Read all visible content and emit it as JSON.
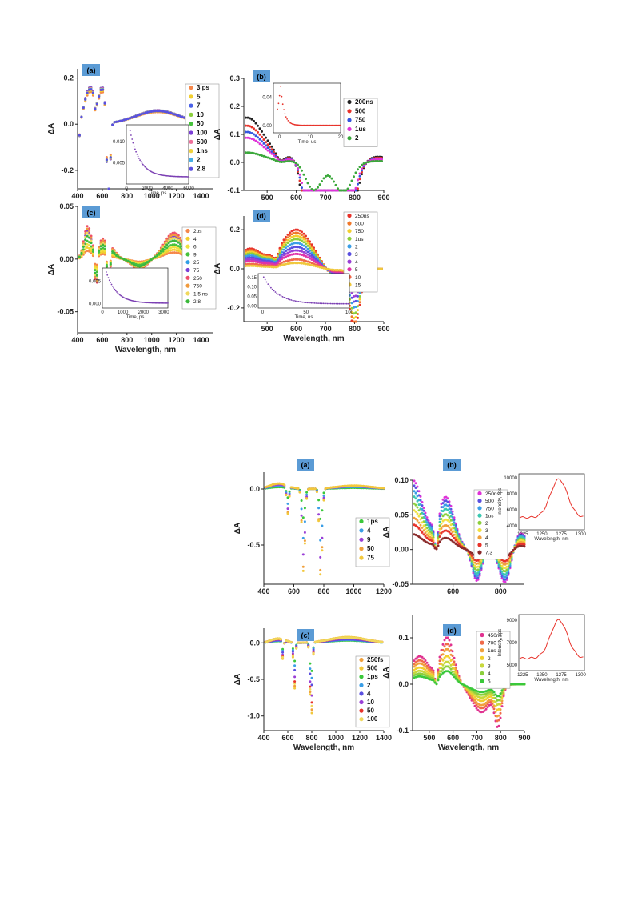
{
  "colors": {
    "panel_label_bg": "#5b9bd5",
    "axis": "#222222",
    "fluorescence": "#e8322a",
    "inset_kinetics": "#7b3fb3"
  },
  "chart_data": [
    {
      "type": "scatter",
      "panel": "(a)",
      "group": "top",
      "ylabel": "ΔA",
      "xlabel": "",
      "xlim": [
        400,
        1500
      ],
      "ylim": [
        -0.28,
        0.24
      ],
      "xticks": [
        400,
        600,
        800,
        1000,
        1200,
        1400
      ],
      "yticks": [
        -0.2,
        0.0,
        0.2
      ],
      "ytick_labels": [
        "-0.2",
        "0.0",
        "0.2"
      ],
      "legend_position": "right",
      "series": [
        {
          "name": "3 ps",
          "color": "#f5874a",
          "scale": 0.88
        },
        {
          "name": "5",
          "color": "#f2cf2f",
          "scale": 0.92
        },
        {
          "name": "7",
          "color": "#4b62e8",
          "scale": 0.95
        },
        {
          "name": "10",
          "color": "#8ccf3c",
          "scale": 0.97
        },
        {
          "name": "50",
          "color": "#46c23c",
          "scale": 1.0
        },
        {
          "name": "100",
          "color": "#7b3fd6",
          "scale": 1.0
        },
        {
          "name": "500",
          "color": "#ef6f9a",
          "scale": 0.98
        },
        {
          "name": "1ns",
          "color": "#f0d23c",
          "scale": 0.97
        },
        {
          "name": "2",
          "color": "#44aee6",
          "scale": 0.96
        },
        {
          "name": "2.8",
          "color": "#5a4fe0",
          "scale": 0.95
        }
      ],
      "inset": {
        "xlabel": "Time, ps",
        "xticks": [
          0,
          2000,
          4000,
          6000
        ],
        "xlim": [
          0,
          6000
        ],
        "yticks": [
          0.005,
          0.01
        ],
        "ytick_labels": [
          "0.005",
          "0.010"
        ],
        "ylim": [
          0.0,
          0.014
        ]
      }
    },
    {
      "type": "scatter",
      "panel": "(b)",
      "group": "top",
      "ylabel": "ΔA",
      "xlabel": "",
      "xlim": [
        420,
        900
      ],
      "ylim": [
        -0.1,
        0.3
      ],
      "xticks": [
        500,
        600,
        700,
        800,
        900
      ],
      "yticks": [
        -0.1,
        0.0,
        0.1,
        0.2,
        0.3
      ],
      "ytick_labels": [
        "-0.1",
        "0.0",
        "0.1",
        "0.2",
        "0.3"
      ],
      "legend_position": "right",
      "series": [
        {
          "name": "200ns",
          "color": "#222222",
          "scale": 1.0
        },
        {
          "name": "500",
          "color": "#e8322a",
          "scale": 0.82
        },
        {
          "name": "750",
          "color": "#3455e0",
          "scale": 0.68
        },
        {
          "name": "1us",
          "color": "#e032d8",
          "scale": 0.55
        },
        {
          "name": "2",
          "color": "#3aa83a",
          "scale": 0.22
        }
      ],
      "inset": {
        "xlabel": "Time, us",
        "xticks": [
          0,
          10,
          20
        ],
        "xlim": [
          -2,
          20
        ],
        "yticks": [
          0.0,
          0.04
        ],
        "ytick_labels": [
          "0.00",
          "0.04"
        ],
        "ylim": [
          -0.01,
          0.06
        ]
      }
    },
    {
      "type": "scatter",
      "panel": "(c)",
      "group": "top",
      "ylabel": "ΔA",
      "xlabel": "Wavelength, nm",
      "xlim": [
        400,
        1500
      ],
      "ylim": [
        -0.07,
        0.05
      ],
      "xticks": [
        400,
        600,
        800,
        1000,
        1200,
        1400
      ],
      "yticks": [
        -0.05,
        0.0,
        0.05
      ],
      "ytick_labels": [
        "-0.05",
        "0.00",
        "0.05"
      ],
      "legend_position": "right",
      "series": [
        {
          "name": "2ps",
          "color": "#f5874a",
          "scale": 0.25
        },
        {
          "name": "4",
          "color": "#f2cf2f",
          "scale": 0.35
        },
        {
          "name": "6",
          "color": "#f0e040",
          "scale": 0.45
        },
        {
          "name": "9",
          "color": "#46c23c",
          "scale": 0.55
        },
        {
          "name": "25",
          "color": "#2f9ee6",
          "scale": 0.7
        },
        {
          "name": "75",
          "color": "#7b3fd6",
          "scale": 0.85
        },
        {
          "name": "250",
          "color": "#ef4f6a",
          "scale": 1.0
        },
        {
          "name": "750",
          "color": "#f09a3c",
          "scale": 0.92
        },
        {
          "name": "1.5 ns",
          "color": "#f0d85c",
          "scale": 0.8
        },
        {
          "name": "2.8",
          "color": "#3ab83a",
          "scale": 0.7
        }
      ],
      "inset": {
        "xlabel": "Time, ps",
        "xticks": [
          0,
          1000,
          2000,
          3000
        ],
        "xlim": [
          0,
          3200
        ],
        "yticks": [
          0.0,
          0.005
        ],
        "ytick_labels": [
          "0.000",
          "0.005"
        ],
        "ylim": [
          -0.001,
          0.008
        ]
      }
    },
    {
      "type": "scatter",
      "panel": "(d)",
      "group": "top",
      "ylabel": "ΔA",
      "xlabel": "Wavelength, nm",
      "xlim": [
        420,
        900
      ],
      "ylim": [
        -0.27,
        0.27
      ],
      "xticks": [
        500,
        600,
        700,
        800,
        900
      ],
      "yticks": [
        -0.2,
        0.0,
        0.2
      ],
      "ytick_labels": [
        "-0.2",
        "0.0",
        "0.2"
      ],
      "legend_position": "right",
      "series": [
        {
          "name": "250ns",
          "color": "#e8322a",
          "scale": 1.0
        },
        {
          "name": "500",
          "color": "#f0782a",
          "scale": 0.92
        },
        {
          "name": "750",
          "color": "#f2cf2f",
          "scale": 0.84
        },
        {
          "name": "1us",
          "color": "#8ccf3c",
          "scale": 0.76
        },
        {
          "name": "2",
          "color": "#3a9ee6",
          "scale": 0.66
        },
        {
          "name": "3",
          "color": "#5a4fe0",
          "scale": 0.56
        },
        {
          "name": "4",
          "color": "#9a3fd6",
          "scale": 0.47
        },
        {
          "name": "5",
          "color": "#e032a8",
          "scale": 0.38
        },
        {
          "name": "10",
          "color": "#f06a4a",
          "scale": 0.24
        },
        {
          "name": "15",
          "color": "#f0c83c",
          "scale": 0.15
        }
      ],
      "inset": {
        "xlabel": "Time, us",
        "xticks": [
          0,
          50,
          100
        ],
        "xlim": [
          -5,
          100
        ],
        "yticks": [
          0.0,
          0.05,
          0.1,
          0.15
        ],
        "ytick_labels": [
          "0.00",
          "0.05",
          "0.10",
          "0.15"
        ],
        "ylim": [
          -0.01,
          0.17
        ]
      }
    },
    {
      "type": "scatter",
      "panel": "(a)",
      "group": "bottom",
      "ylabel": "ΔA",
      "xlabel": "",
      "xlim": [
        400,
        1200
      ],
      "ylim": [
        -0.85,
        0.15
      ],
      "xticks": [
        400,
        600,
        800,
        1000,
        1200
      ],
      "yticks": [
        -0.5,
        0.0
      ],
      "ytick_labels": [
        "-0.5",
        "0.0"
      ],
      "legend_position": "right",
      "series": [
        {
          "name": "1ps",
          "color": "#3ac83a",
          "scale": 0.35
        },
        {
          "name": "4",
          "color": "#3a9ee6",
          "scale": 0.6
        },
        {
          "name": "9",
          "color": "#9a3fd6",
          "scale": 0.8
        },
        {
          "name": "50",
          "color": "#f0a03c",
          "scale": 0.95
        },
        {
          "name": "75",
          "color": "#f2c83c",
          "scale": 1.0
        }
      ]
    },
    {
      "type": "scatter",
      "panel": "(b)",
      "group": "bottom",
      "ylabel": "ΔA",
      "xlabel": "",
      "xlim": [
        430,
        900
      ],
      "ylim": [
        -0.05,
        0.1
      ],
      "xticks": [
        600,
        800
      ],
      "yticks": [
        -0.05,
        0.0,
        0.05,
        0.1
      ],
      "ytick_labels": [
        "-0.05",
        "0.00",
        "0.05",
        "0.10"
      ],
      "legend_position": "right",
      "series": [
        {
          "name": "250ns",
          "color": "#e032d8",
          "scale": 1.0
        },
        {
          "name": "500",
          "color": "#5a4fe0",
          "scale": 0.93
        },
        {
          "name": "750",
          "color": "#3a9ee6",
          "scale": 0.85
        },
        {
          "name": "1us",
          "color": "#3ac8b0",
          "scale": 0.77
        },
        {
          "name": "2",
          "color": "#8ccf3c",
          "scale": 0.67
        },
        {
          "name": "3",
          "color": "#f0e040",
          "scale": 0.57
        },
        {
          "name": "4",
          "color": "#f0a03c",
          "scale": 0.46
        },
        {
          "name": "5",
          "color": "#e8322a",
          "scale": 0.36
        },
        {
          "name": "7.3",
          "color": "#8a2a2a",
          "scale": 0.22
        }
      ],
      "inset": {
        "type": "line",
        "xlabel": "Wavelength, nm",
        "ylabel": "Intensity, cps",
        "xticks": [
          1225,
          1250,
          1275,
          1300
        ],
        "xlim": [
          1220,
          1305
        ],
        "yticks": [
          4000,
          6000,
          8000,
          10000
        ],
        "ytick_labels": [
          "4000",
          "6000",
          "8000",
          "10000"
        ],
        "ylim": [
          3500,
          10500
        ],
        "peak_nm": 1272
      }
    },
    {
      "type": "scatter",
      "panel": "(c)",
      "group": "bottom",
      "ylabel": "ΔA",
      "xlabel": "Wavelength, nm",
      "xlim": [
        400,
        1400
      ],
      "ylim": [
        -1.2,
        0.2
      ],
      "xticks": [
        400,
        600,
        800,
        1000,
        1200,
        1400
      ],
      "yticks": [
        -1.0,
        -0.5,
        0.0
      ],
      "ytick_labels": [
        "-1.0",
        "-0.5",
        "0.0"
      ],
      "legend_position": "right",
      "series": [
        {
          "name": "250fs",
          "color": "#f0a03c",
          "scale": 0.95
        },
        {
          "name": "500",
          "color": "#f2c83c",
          "scale": 1.0
        },
        {
          "name": "1ps",
          "color": "#3ac83a",
          "scale": 0.4
        },
        {
          "name": "2",
          "color": "#3a9ee6",
          "scale": 0.5
        },
        {
          "name": "4",
          "color": "#5a4fe0",
          "scale": 0.6
        },
        {
          "name": "10",
          "color": "#9a3fd6",
          "scale": 0.75
        },
        {
          "name": "50",
          "color": "#e8322a",
          "scale": 0.85
        },
        {
          "name": "100",
          "color": "#f0d85c",
          "scale": 0.9
        }
      ]
    },
    {
      "type": "scatter",
      "panel": "(d)",
      "group": "bottom",
      "ylabel": "ΔA",
      "xlabel": "Wavelength, nm",
      "xlim": [
        430,
        900
      ],
      "ylim": [
        -0.1,
        0.15
      ],
      "xticks": [
        500,
        600,
        700,
        800,
        900
      ],
      "yticks": [
        -0.1,
        0.0,
        0.1
      ],
      "ytick_labels": [
        "-0.1",
        "0.0",
        "0.1"
      ],
      "legend_position": "right",
      "series": [
        {
          "name": "450ns",
          "color": "#e03290",
          "scale": 1.0
        },
        {
          "name": "700",
          "color": "#f06a4a",
          "scale": 0.86
        },
        {
          "name": "1us",
          "color": "#f0a03c",
          "scale": 0.75
        },
        {
          "name": "2",
          "color": "#f2cf2f",
          "scale": 0.6
        },
        {
          "name": "3",
          "color": "#c8d83c",
          "scale": 0.48
        },
        {
          "name": "4",
          "color": "#8ccf3c",
          "scale": 0.38
        },
        {
          "name": "5",
          "color": "#3ac83a",
          "scale": 0.28
        }
      ],
      "inset": {
        "type": "line",
        "xlabel": "Wavelength, nm",
        "ylabel": "Intensity, cps",
        "xticks": [
          1225,
          1250,
          1275,
          1300
        ],
        "xlim": [
          1220,
          1305
        ],
        "yticks": [
          5000,
          7000,
          9000
        ],
        "ytick_labels": [
          "5000",
          "7000",
          "9000"
        ],
        "ylim": [
          4500,
          9500
        ],
        "peak_nm": 1272
      }
    }
  ]
}
